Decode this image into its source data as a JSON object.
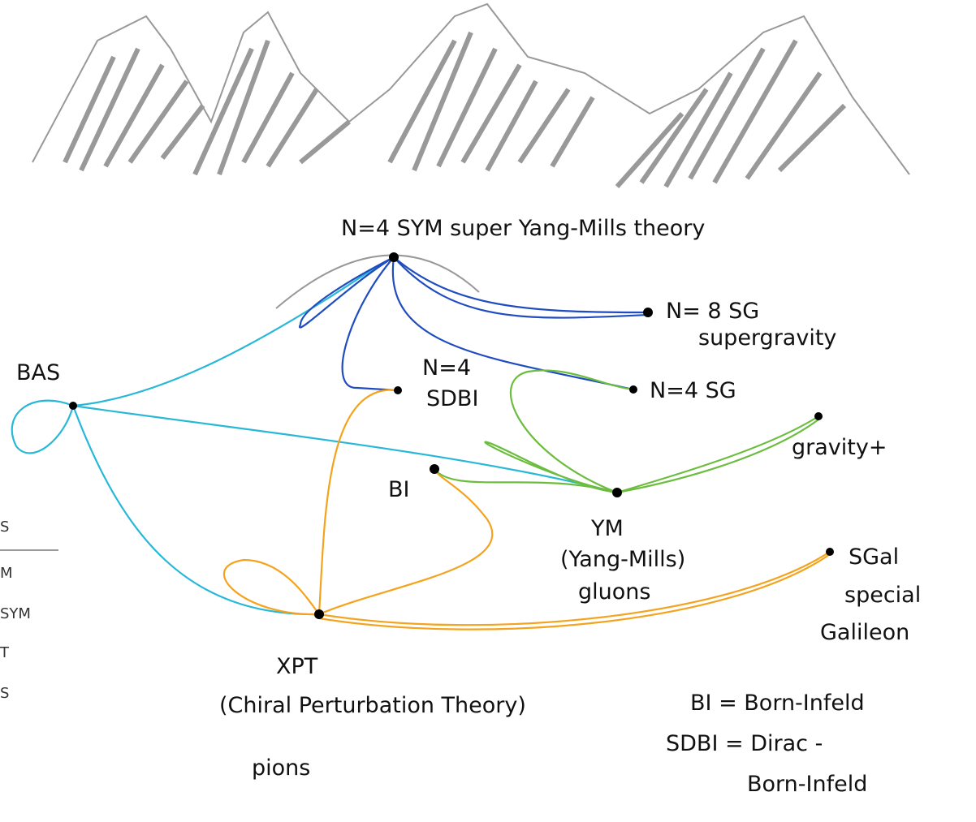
{
  "nodes": [
    {
      "label": "N=4 SYM super Yang-Mills theory"
    },
    {
      "label": "N= 8 SG",
      "sublabels": [
        "supergravity"
      ]
    },
    {
      "label": "N=4 SG"
    },
    {
      "label": "N=4",
      "sublabels": [
        "SDBI"
      ]
    },
    {
      "label": "BAS"
    },
    {
      "label": "gravity+"
    },
    {
      "label": "BI"
    },
    {
      "label": "YM",
      "sublabels": [
        "(Yang-Mills)",
        "gluons"
      ]
    },
    {
      "label": "SGal",
      "sublabels": [
        "special",
        "Galileon"
      ]
    },
    {
      "label": "XPT",
      "sublabels": [
        "(Chiral Perturbation Theory)",
        "pions"
      ]
    }
  ],
  "notes": [
    "BI = Born-Infeld",
    "SDBI = Dirac -",
    "Born-Infeld"
  ],
  "side_list": [
    "S",
    "M",
    "SYM",
    "T",
    "S"
  ]
}
